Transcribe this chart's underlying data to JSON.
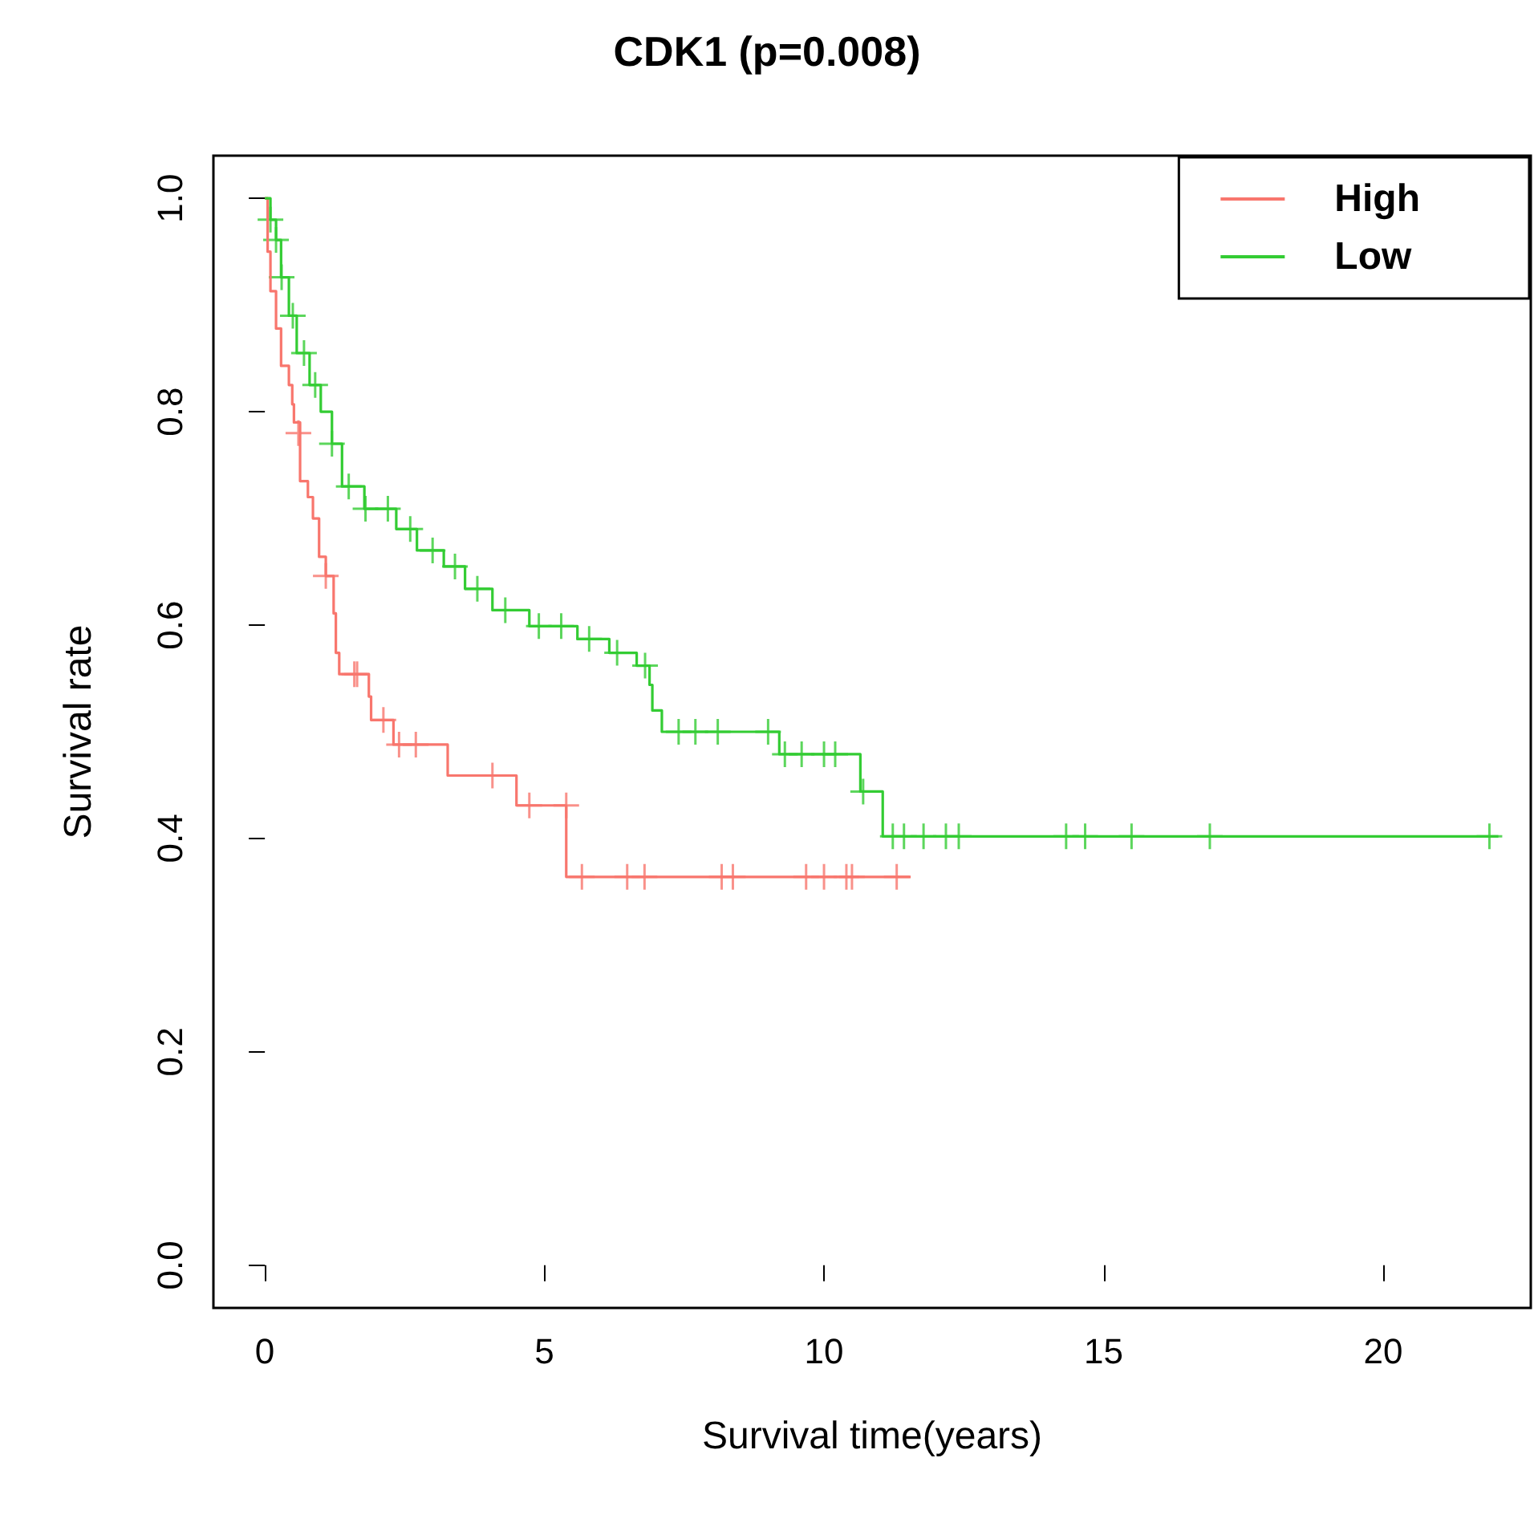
{
  "chart_data": {
    "type": "step",
    "title": "CDK1 (p=0.008)",
    "xlabel": "Survival time(years)",
    "ylabel": "Survival rate",
    "xlim": [
      -0.92,
      22.64
    ],
    "xticks": [
      0,
      5,
      10,
      15,
      20
    ],
    "ylim": [
      -0.04,
      1.04
    ],
    "yticks": [
      {
        "value": 0,
        "label": "0.0"
      },
      {
        "value": 0.2,
        "label": "0.2"
      },
      {
        "value": 0.4,
        "label": "0.4"
      },
      {
        "value": 0.6,
        "label": "0.6"
      },
      {
        "value": 0.8,
        "label": "0.8"
      },
      {
        "value": 1,
        "label": "1.0"
      }
    ],
    "grid": false,
    "legend": "top right",
    "marker": "none",
    "line_style": "solid",
    "series": [
      {
        "name": "High",
        "color": "#f8766d",
        "x": [
          0,
          0.05,
          0.1,
          0.2,
          0.29,
          0.43,
          0.49,
          0.52,
          0.63,
          0.77,
          0.86,
          0.97,
          1.09,
          1.23,
          1.27,
          1.33,
          1.86,
          1.9,
          2.3,
          3.27,
          4.5,
          5.39,
          11.55
        ],
        "values": [
          1,
          0.95,
          0.913,
          0.878,
          0.843,
          0.825,
          0.807,
          0.79,
          0.735,
          0.72,
          0.7,
          0.664,
          0.646,
          0.611,
          0.574,
          0.554,
          0.533,
          0.511,
          0.488,
          0.459,
          0.431,
          0.364,
          0.364
        ]
      },
      {
        "name": "Low",
        "color": "#33cc33",
        "x": [
          0,
          0.1,
          0.2,
          0.29,
          0.43,
          0.57,
          0.8,
          1.0,
          1.2,
          1.38,
          1.78,
          2.35,
          2.72,
          3.2,
          3.58,
          4.07,
          4.73,
          5.59,
          6.16,
          6.65,
          6.88,
          6.93,
          7.1,
          9.2,
          10.65,
          11.05,
          22.06
        ],
        "values": [
          1,
          0.98,
          0.961,
          0.926,
          0.89,
          0.855,
          0.825,
          0.8,
          0.77,
          0.73,
          0.709,
          0.69,
          0.67,
          0.655,
          0.634,
          0.614,
          0.599,
          0.587,
          0.574,
          0.562,
          0.544,
          0.52,
          0.5,
          0.479,
          0.444,
          0.402,
          0.402
        ]
      },
      {
        "type": "scatter",
        "marker": "cross",
        "color": "#f8766d",
        "x": [
          0.6,
          1.09,
          1.6,
          1.65,
          2.12,
          2.4,
          2.7,
          4.07,
          4.73,
          5.39,
          5.67,
          6.48,
          6.79,
          8.17,
          8.37,
          9.68,
          10.0,
          10.4,
          10.5,
          11.3
        ],
        "values": [
          0.78,
          0.646,
          0.554,
          0.554,
          0.511,
          0.488,
          0.488,
          0.459,
          0.431,
          0.431,
          0.364,
          0.364,
          0.364,
          0.364,
          0.364,
          0.364,
          0.364,
          0.364,
          0.364,
          0.364
        ]
      },
      {
        "type": "scatter",
        "marker": "cross",
        "color": "#33cc33",
        "x": [
          0.1,
          0.2,
          0.3,
          0.5,
          0.7,
          0.9,
          1.2,
          1.5,
          1.8,
          2.2,
          2.6,
          3.0,
          3.4,
          3.8,
          4.3,
          4.9,
          5.3,
          5.8,
          6.3,
          6.8,
          7.4,
          7.7,
          8.1,
          9.0,
          9.3,
          9.6,
          10.0,
          10.2,
          10.7,
          11.23,
          11.43,
          11.78,
          12.18,
          12.41,
          14.33,
          14.67,
          15.5,
          16.9,
          21.9
        ],
        "values": [
          0.98,
          0.961,
          0.926,
          0.89,
          0.855,
          0.825,
          0.77,
          0.73,
          0.709,
          0.709,
          0.69,
          0.67,
          0.655,
          0.634,
          0.614,
          0.599,
          0.599,
          0.587,
          0.574,
          0.562,
          0.5,
          0.5,
          0.5,
          0.5,
          0.479,
          0.479,
          0.479,
          0.479,
          0.444,
          0.402,
          0.402,
          0.402,
          0.402,
          0.402,
          0.402,
          0.402,
          0.402,
          0.402,
          0.402
        ]
      }
    ]
  }
}
